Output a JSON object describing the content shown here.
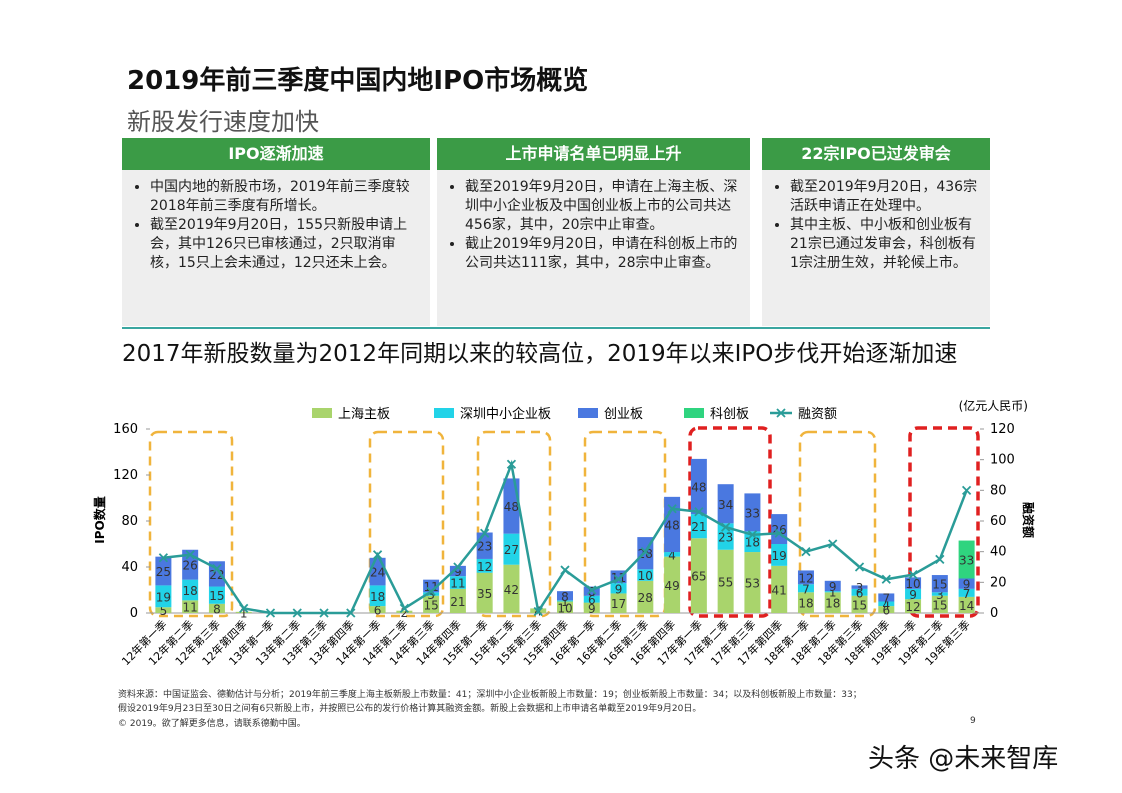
{
  "header": {
    "title": "2019年前三季度中国内地IPO市场概览",
    "subtitle": "新股发行速度加快"
  },
  "panels": [
    {
      "title": "IPO逐渐加速",
      "bullets": [
        "中国内地的新股市场，2019年前三季度较2018年前三季度有所增长。",
        "截至2019年9月20日，155只新股申请上会，其中126只已审核通过，2只取消审核，15只上会未通过，12只还未上会。"
      ]
    },
    {
      "title": "上市申请名单已明显上升",
      "bullets": [
        "截至2019年9月20日，申请在上海主板、深圳中小企业板及中国创业板上市的公司共达456家，其中，20宗中止审查。",
        "截止2019年9月20日，申请在科创板上市的公司共达111家，其中，28宗中止审查。"
      ]
    },
    {
      "title": "22宗IPO已过发审会",
      "bullets": [
        "截至2019年9月20日，436宗活跃申请正在处理中。",
        "其中主板、中小板和创业板有21宗已通过发审会，科创板有1宗注册生效，并轮候上市。"
      ]
    }
  ],
  "section_heading": "2017年新股数量为2012年同期以来的较高位，2019年以来IPO步伐开始逐渐加速",
  "chart_data": {
    "type": "bar",
    "stacked": true,
    "ylabel": "IPO数量",
    "y2label": "融资额",
    "y2unit": "(亿元人民币)",
    "categories": [
      "12年第一季",
      "12年第二季",
      "12年第三季",
      "12年第四季",
      "13年第一季",
      "13年第二季",
      "13年第三季",
      "13年第四季",
      "14年第一季",
      "14年第二季",
      "14年第三季",
      "14年第四季",
      "15年第一季",
      "15年第二季",
      "15年第三季",
      "15年第四季",
      "16年第一季",
      "16年第二季",
      "16年第三季",
      "16年第四季",
      "17年第一季",
      "17年第二季",
      "17年第三季",
      "17年第四季",
      "18年第一季",
      "18年第二季",
      "18年第三季",
      "18年第四季",
      "19年第一季",
      "19年第二季",
      "19年第三季"
    ],
    "series": [
      {
        "name": "上海主板",
        "color": "#a9d46c",
        "values": [
          5,
          11,
          8,
          1,
          0,
          0,
          0,
          0,
          6,
          2,
          15,
          21,
          35,
          42,
          4,
          10,
          9,
          17,
          28,
          49,
          65,
          55,
          53,
          41,
          18,
          18,
          15,
          6,
          12,
          15,
          14
        ]
      },
      {
        "name": "深圳中小企业板",
        "color": "#22d3e8",
        "values": [
          19,
          18,
          15,
          0,
          0,
          0,
          0,
          0,
          18,
          0,
          3,
          11,
          12,
          27,
          0,
          1,
          6,
          9,
          10,
          4,
          21,
          23,
          18,
          19,
          7,
          1,
          6,
          4,
          9,
          3,
          7
        ]
      },
      {
        "name": "创业板",
        "color": "#4a78e0",
        "values": [
          25,
          26,
          22,
          0,
          0,
          0,
          0,
          0,
          24,
          0,
          11,
          9,
          23,
          48,
          0,
          8,
          8,
          11,
          28,
          48,
          48,
          34,
          33,
          26,
          12,
          9,
          3,
          7,
          10,
          15,
          9
        ]
      },
      {
        "name": "科创板",
        "color": "#2fd47f",
        "values": [
          null,
          null,
          null,
          null,
          null,
          null,
          null,
          null,
          null,
          null,
          null,
          null,
          null,
          null,
          null,
          null,
          null,
          null,
          null,
          null,
          null,
          null,
          null,
          null,
          null,
          null,
          null,
          null,
          null,
          null,
          33
        ]
      },
      {
        "name": "融资额",
        "color": "#2a9c98",
        "type": "line",
        "axis": "y2",
        "values": [
          36,
          38,
          29,
          3,
          0,
          0,
          0,
          0,
          38,
          3,
          14,
          30,
          52,
          97,
          1,
          28,
          15,
          22,
          40,
          68,
          66,
          56,
          51,
          52,
          40,
          45,
          30,
          22,
          25,
          35,
          80
        ]
      }
    ],
    "ylim": [
      0,
      160
    ],
    "yticks": [
      0,
      40,
      80,
      120,
      160
    ],
    "y2lim": [
      0,
      120
    ],
    "y2ticks": [
      0,
      20,
      40,
      60,
      80,
      100,
      120
    ]
  },
  "footnotes": [
    "资料来源：中国证监会、德勤估计与分析；2019年前三季度上海主板新股上市数量：41；深圳中小企业板新股上市数量：19；创业板新股上市数量：34；以及科创板新股上市数量：33；",
    "假设2019年9月23日至30日之间有6只新股上市，并按照已公布的发行价格计算其融资金额。新股上会数据和上市申请名单截至2019年9月20日。"
  ],
  "copyright": "© 2019。欲了解更多信息，请联系德勤中国。",
  "page_number": "9",
  "watermark": "头条 @未来智库"
}
